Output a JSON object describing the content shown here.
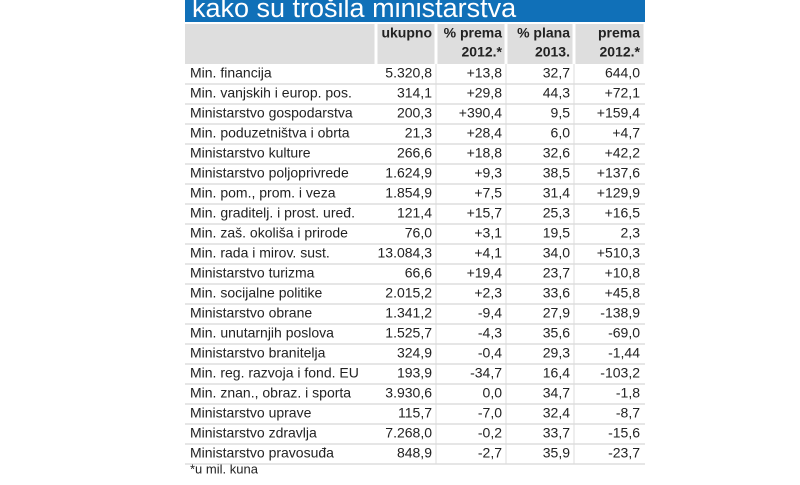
{
  "title": "kako su trošila ministarstva",
  "table": {
    "columns": [
      [
        "ukupno"
      ],
      [
        "% prema",
        "2012.*"
      ],
      [
        "% plana",
        "2013."
      ],
      [
        "prema",
        "2012.*"
      ]
    ],
    "rows": [
      [
        "Min. financija",
        "5.320,8",
        "+13,8",
        "32,7",
        "644,0"
      ],
      [
        "Min. vanjskih i europ. pos.",
        "314,1",
        "+29,8",
        "44,3",
        "+72,1"
      ],
      [
        "Ministarstvo gospodarstva",
        "200,3",
        "+390,4",
        "9,5",
        "+159,4"
      ],
      [
        "Min. poduzetništva i obrta",
        "21,3",
        "+28,4",
        "6,0",
        "+4,7"
      ],
      [
        "Ministarstvo kulture",
        "266,6",
        "+18,8",
        "32,6",
        "+42,2"
      ],
      [
        "Ministarstvo poljoprivrede",
        "1.624,9",
        "+9,3",
        "38,5",
        "+137,6"
      ],
      [
        "Min. pom., prom. i veza",
        "1.854,9",
        "+7,5",
        "31,4",
        "+129,9"
      ],
      [
        "Min. graditelj. i prost. uređ.",
        "121,4",
        "+15,7",
        "25,3",
        "+16,5"
      ],
      [
        "Min. zaš. okoliša i prirode",
        "76,0",
        "+3,1",
        "19,5",
        "2,3"
      ],
      [
        "Min. rada i mirov. sust.",
        "13.084,3",
        "+4,1",
        "34,0",
        "+510,3"
      ],
      [
        "Ministarstvo turizma",
        "66,6",
        "+19,4",
        "23,7",
        "+10,8"
      ],
      [
        "Min. socijalne politike",
        "2.015,2",
        "+2,3",
        "33,6",
        "+45,8"
      ],
      [
        "Ministarstvo obrane",
        "1.341,2",
        "-9,4",
        "27,9",
        "-138,9"
      ],
      [
        "Min. unutarnjih poslova",
        "1.525,7",
        "-4,3",
        "35,6",
        "-69,0"
      ],
      [
        "Ministarstvo branitelja",
        "324,9",
        "-0,4",
        "29,3",
        "-1,44"
      ],
      [
        "Min. reg. razvoja i fond. EU",
        "193,9",
        "-34,7",
        "16,4",
        "-103,2"
      ],
      [
        "Min. znan., obraz. i sporta",
        "3.930,6",
        "0,0",
        "34,7",
        "-1,8"
      ],
      [
        "Ministarstvo uprave",
        "115,7",
        "-7,0",
        "32,4",
        "-8,7"
      ],
      [
        "Ministarstvo zdravlja",
        "7.268,0",
        "-0,2",
        "33,7",
        "-15,6"
      ],
      [
        "Ministarstvo pravosuđa",
        "848,9",
        "-2,7",
        "35,9",
        "-23,7"
      ]
    ]
  },
  "footnote": "*u mil. kuna"
}
